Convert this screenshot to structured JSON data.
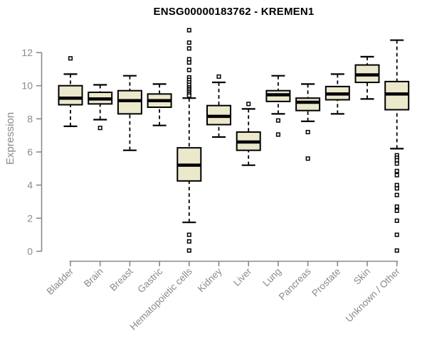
{
  "chart_data": {
    "type": "boxplot",
    "title": "ENSG00000183762 - KREMEN1",
    "ylabel": "Expression",
    "xlabel": "",
    "yticks": [
      0,
      2,
      4,
      6,
      8,
      10,
      12
    ],
    "ylim": [
      0,
      13.45
    ],
    "grid": false,
    "legend_position": "none",
    "colors": {
      "box_fill": "#ece8cc",
      "box_stroke": "#000000",
      "median": "#000000",
      "outlier_fill": "#ffffff",
      "axis_line": "#8a8a8a",
      "tick_text": "#8a8a8a",
      "title_text": "#000000"
    },
    "categories": [
      "Bladder",
      "Brain",
      "Breast",
      "Gastric",
      "Hematopoietic cells",
      "Kidney",
      "Liver",
      "Lung",
      "Pancreas",
      "Prostate",
      "Skin",
      "Unknown / Other"
    ],
    "boxes": [
      {
        "label": "Bladder",
        "whislo": 7.55,
        "q1": 8.85,
        "med": 9.25,
        "q3": 10.0,
        "whishi": 10.7,
        "outliers": [
          11.65
        ]
      },
      {
        "label": "Brain",
        "whislo": 7.95,
        "q1": 8.9,
        "med": 9.2,
        "q3": 9.6,
        "whishi": 10.05,
        "outliers": [
          7.45
        ]
      },
      {
        "label": "Breast",
        "whislo": 6.1,
        "q1": 8.3,
        "med": 9.1,
        "q3": 9.7,
        "whishi": 10.6,
        "outliers": []
      },
      {
        "label": "Gastric",
        "whislo": 7.6,
        "q1": 8.7,
        "med": 9.1,
        "q3": 9.5,
        "whishi": 10.1,
        "outliers": []
      },
      {
        "label": "Hematopoietic cells",
        "whislo": 1.75,
        "q1": 4.25,
        "med": 5.2,
        "q3": 6.25,
        "whishi": 9.25,
        "outliers": [
          13.35,
          12.6,
          12.25,
          11.6,
          11.4,
          10.95,
          10.5,
          10.35,
          10.2,
          10.05,
          9.9,
          9.8,
          9.7,
          9.6,
          9.5,
          9.4,
          1.0,
          0.6,
          0.05
        ]
      },
      {
        "label": "Kidney",
        "whislo": 6.9,
        "q1": 7.65,
        "med": 8.15,
        "q3": 8.8,
        "whishi": 10.2,
        "outliers": [
          10.55
        ]
      },
      {
        "label": "Liver",
        "whislo": 5.2,
        "q1": 6.1,
        "med": 6.6,
        "q3": 7.2,
        "whishi": 8.6,
        "outliers": [
          8.9
        ]
      },
      {
        "label": "Lung",
        "whislo": 8.3,
        "q1": 9.05,
        "med": 9.45,
        "q3": 9.7,
        "whishi": 10.6,
        "outliers": [
          7.9,
          7.05
        ]
      },
      {
        "label": "Pancreas",
        "whislo": 7.85,
        "q1": 8.5,
        "med": 9.0,
        "q3": 9.25,
        "whishi": 10.1,
        "outliers": [
          7.2,
          5.6
        ]
      },
      {
        "label": "Prostate",
        "whislo": 8.3,
        "q1": 9.15,
        "med": 9.5,
        "q3": 9.95,
        "whishi": 10.7,
        "outliers": []
      },
      {
        "label": "Skin",
        "whislo": 9.2,
        "q1": 10.2,
        "med": 10.65,
        "q3": 11.25,
        "whishi": 11.75,
        "outliers": []
      },
      {
        "label": "Unknown / Other",
        "whislo": 6.2,
        "q1": 8.55,
        "med": 9.5,
        "q3": 10.25,
        "whishi": 12.75,
        "outliers": [
          5.8,
          5.65,
          5.5,
          5.3,
          4.85,
          4.6,
          4.0,
          3.8,
          3.4,
          2.7,
          2.45,
          1.85,
          1.0,
          0.05
        ]
      }
    ]
  }
}
